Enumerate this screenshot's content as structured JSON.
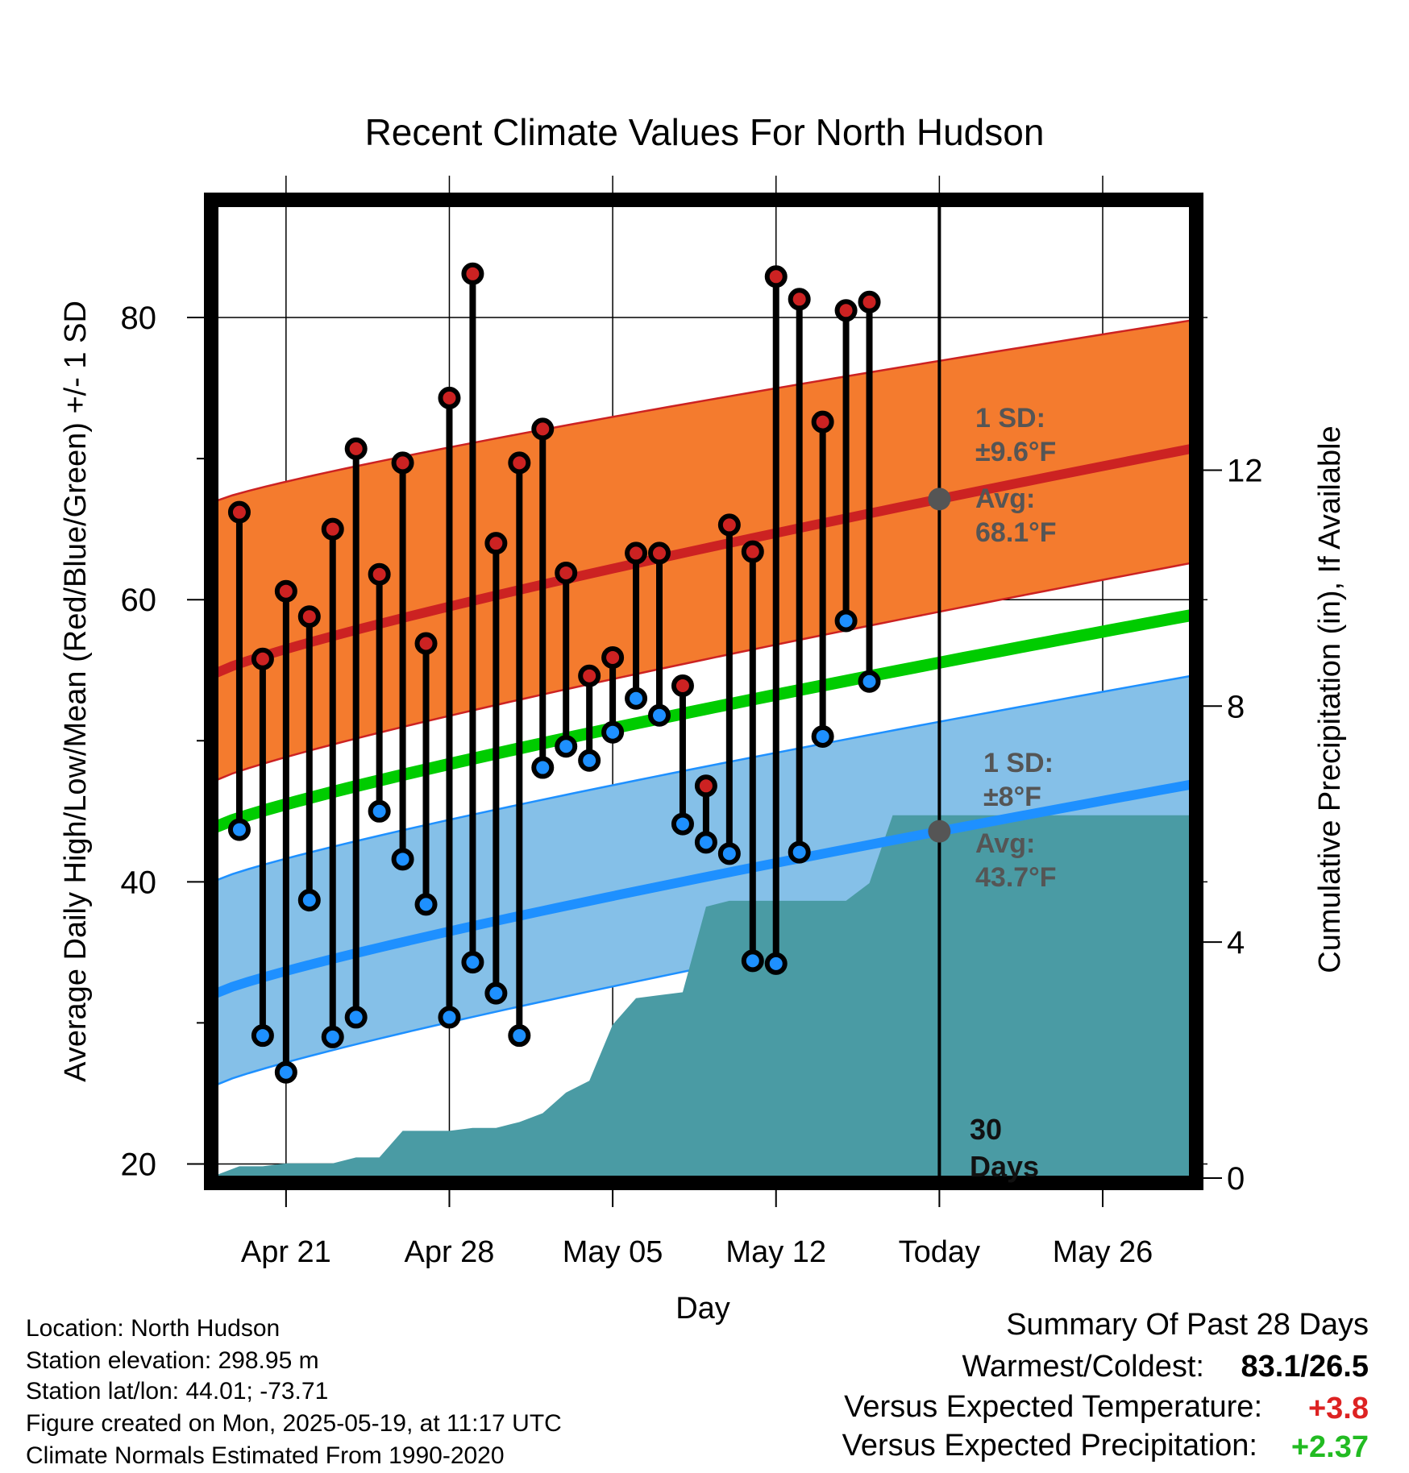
{
  "chart_data": {
    "type": "line",
    "title": "Recent Climate Values For North Hudson",
    "xlabel": "Day",
    "ylabel_left": "Average Daily High/Low/Mean (Red/Blue/Green) +/- 1 SD",
    "ylabel_right": "Cumulative Precipitation (in), If Available",
    "x_start_date": "2025-04-18",
    "x_range_days": [
      0,
      41.8
    ],
    "xticks": [
      {
        "day": 3,
        "label": "Apr 21"
      },
      {
        "day": 10,
        "label": "Apr 28"
      },
      {
        "day": 17,
        "label": "May 05"
      },
      {
        "day": 24,
        "label": "May 12"
      },
      {
        "day": 31,
        "label": "Today"
      },
      {
        "day": 38,
        "label": "May 26"
      }
    ],
    "yleft": {
      "range": [
        19,
        88
      ],
      "major_ticks": [
        20,
        40,
        60,
        80
      ],
      "minor_ticks": [
        30,
        50,
        70
      ]
    },
    "yright": {
      "range": [
        0,
        16.5
      ],
      "ticks": [
        0,
        4,
        8,
        12
      ],
      "labels": [
        "0",
        "4",
        "8",
        "12"
      ]
    },
    "normals": {
      "avg_high": {
        "start": 54.8,
        "end": 70.7
      },
      "high_sd_upper": {
        "start": 67.0,
        "end": 79.8
      },
      "high_sd_lower": {
        "start": 47.2,
        "end": 62.6
      },
      "avg_mean": {
        "start": 43.9,
        "end": 58.9
      },
      "avg_low": {
        "start": 32.1,
        "end": 46.9
      },
      "low_sd_upper": {
        "start": 40.1,
        "end": 54.6
      },
      "low_sd_lower": {
        "start": 25.6,
        "end": 40.6
      }
    },
    "series": [
      {
        "name": "High",
        "days": [
          1,
          2,
          3,
          4,
          5,
          6,
          7,
          8,
          9,
          10,
          11,
          12,
          13,
          14,
          15,
          16,
          17,
          18,
          19,
          20,
          21,
          22,
          23,
          24,
          25,
          26,
          27,
          28
        ],
        "values": [
          66.2,
          55.8,
          60.6,
          58.8,
          65.0,
          70.7,
          61.8,
          69.7,
          56.9,
          74.3,
          83.1,
          64.0,
          69.7,
          72.1,
          61.9,
          54.6,
          55.9,
          63.3,
          63.3,
          53.9,
          46.8,
          65.3,
          63.4,
          82.9,
          81.3,
          72.6,
          80.5,
          81.1
        ]
      },
      {
        "name": "Low",
        "days": [
          1,
          2,
          3,
          4,
          5,
          6,
          7,
          8,
          9,
          10,
          11,
          12,
          13,
          14,
          15,
          16,
          17,
          18,
          19,
          20,
          21,
          22,
          23,
          24,
          25,
          26,
          27,
          28
        ],
        "values": [
          43.7,
          29.1,
          26.5,
          38.7,
          29.0,
          30.4,
          45.0,
          41.6,
          38.4,
          30.4,
          34.3,
          32.1,
          29.1,
          48.1,
          49.6,
          48.6,
          50.6,
          53.0,
          51.8,
          44.1,
          42.8,
          42.0,
          34.4,
          34.2,
          42.1,
          50.3,
          58.5,
          54.2
        ]
      }
    ],
    "precipitation": {
      "name": "Cumulative Precipitation",
      "days": [
        0,
        1,
        2,
        3,
        4,
        5,
        6,
        7,
        8,
        9,
        10,
        11,
        12,
        13,
        14,
        15,
        16,
        17,
        18,
        19,
        20,
        21,
        22,
        23,
        24,
        25,
        26,
        27,
        28,
        29,
        41.8
      ],
      "values": [
        0.05,
        0.2,
        0.2,
        0.25,
        0.25,
        0.25,
        0.35,
        0.35,
        0.8,
        0.8,
        0.8,
        0.85,
        0.85,
        0.95,
        1.1,
        1.45,
        1.65,
        2.6,
        3.05,
        3.1,
        3.15,
        4.6,
        4.7,
        4.7,
        4.7,
        4.7,
        4.7,
        4.7,
        5.0,
        6.15,
        6.15
      ]
    },
    "annotations": {
      "high_sd_label": "1 SD:",
      "high_sd_value": "±9.6°F",
      "high_avg_label": "Avg:",
      "high_avg_value": "68.1°F",
      "low_sd_label": "1 SD:",
      "low_sd_value": "±8°F",
      "low_avg_label": "Avg:",
      "low_avg_value": "43.7°F",
      "period_line1": "30",
      "period_line2": "Days"
    },
    "colors": {
      "high": "#cc2222",
      "high_band": "#f47b2e",
      "mean": "#00cc00",
      "low": "#1e90ff",
      "low_band": "#85c0e8",
      "precip": "#4a9ba4",
      "annotation": "#555555"
    },
    "grid": true
  },
  "footer": {
    "location": "Location: North Hudson",
    "elevation": "Station elevation: 298.95 m",
    "latlon": "Station lat/lon: 44.01; -73.71",
    "created": "Figure created on Mon, 2025-05-19, at 11:17 UTC",
    "normals": "Climate Normals Estimated From 1990-2020"
  },
  "summary": {
    "title": "Summary Of Past 28 Days",
    "warmest_label": "Warmest/Coldest:",
    "warmest_value": "83.1/26.5",
    "temp_label": "Versus Expected Temperature:",
    "temp_value": "+3.8",
    "precip_label": "Versus Expected Precipitation:",
    "precip_value": "+2.37",
    "temp_color": "#dd2222",
    "precip_color": "#22bb22"
  }
}
